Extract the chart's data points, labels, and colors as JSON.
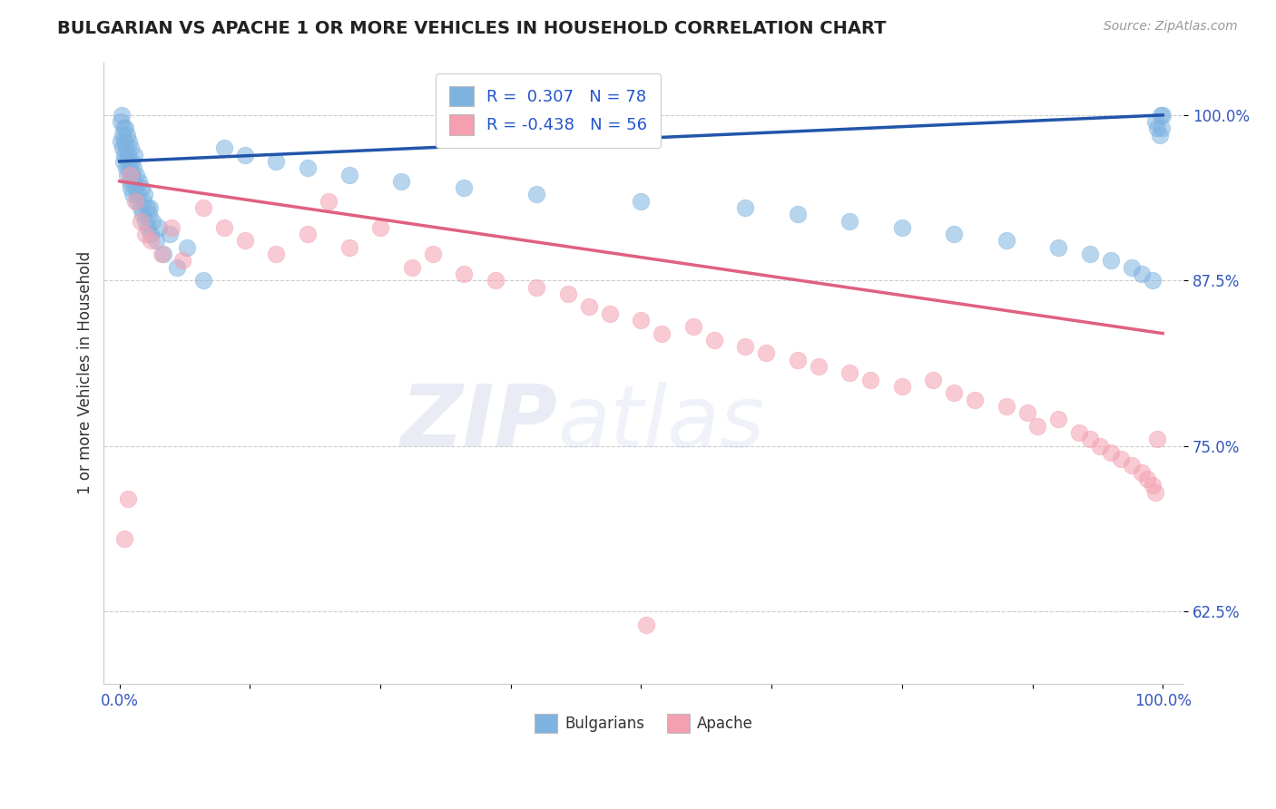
{
  "title": "BULGARIAN VS APACHE 1 OR MORE VEHICLES IN HOUSEHOLD CORRELATION CHART",
  "source_text": "Source: ZipAtlas.com",
  "ylabel": "1 or more Vehicles in Household",
  "xlim": [
    -1.5,
    102
  ],
  "ylim": [
    57.0,
    104.0
  ],
  "yticks": [
    62.5,
    75.0,
    87.5,
    100.0
  ],
  "ytick_labels": [
    "62.5%",
    "75.0%",
    "87.5%",
    "100.0%"
  ],
  "xtick_positions": [
    0,
    12.5,
    25,
    37.5,
    50,
    62.5,
    75,
    87.5,
    100
  ],
  "xtick_labels": [
    "0.0%",
    "",
    "",
    "",
    "",
    "",
    "",
    "",
    "100.0%"
  ],
  "bulgarian_color": "#7eb3e0",
  "apache_color": "#f4a0b0",
  "blue_line_color": "#2255aa",
  "pink_line_color": "#e06080",
  "legend_R_bulgarian": "0.307",
  "legend_N_bulgarian": "78",
  "legend_R_apache": "-0.438",
  "legend_N_apache": "56",
  "watermark_zip_color": "#8899cc",
  "watermark_atlas_color": "#aabbdd",
  "bulgarian_x": [
    0.1,
    0.15,
    0.2,
    0.25,
    0.3,
    0.35,
    0.4,
    0.45,
    0.5,
    0.55,
    0.6,
    0.65,
    0.7,
    0.75,
    0.8,
    0.85,
    0.9,
    0.95,
    1.0,
    1.05,
    1.1,
    1.15,
    1.2,
    1.25,
    1.3,
    1.35,
    1.4,
    1.5,
    1.6,
    1.7,
    1.8,
    1.9,
    2.0,
    2.1,
    2.2,
    2.3,
    2.4,
    2.5,
    2.6,
    2.7,
    2.8,
    2.9,
    3.0,
    3.2,
    3.5,
    3.8,
    4.2,
    4.8,
    5.5,
    6.5,
    8.0,
    10.0,
    12.0,
    15.0,
    18.0,
    22.0,
    27.0,
    33.0,
    40.0,
    50.0,
    60.0,
    65.0,
    70.0,
    75.0,
    80.0,
    85.0,
    90.0,
    93.0,
    95.0,
    97.0,
    98.0,
    99.0,
    99.3,
    99.5,
    99.7,
    99.8,
    99.9,
    100.0
  ],
  "bulgarian_y": [
    99.5,
    98.0,
    100.0,
    97.5,
    98.5,
    99.0,
    96.5,
    97.0,
    98.0,
    99.0,
    96.0,
    97.5,
    98.5,
    95.5,
    96.5,
    97.0,
    98.0,
    95.0,
    96.0,
    97.5,
    94.5,
    95.5,
    96.5,
    94.0,
    95.0,
    96.0,
    97.0,
    94.5,
    95.5,
    93.5,
    94.0,
    95.0,
    93.0,
    94.5,
    92.5,
    93.5,
    94.0,
    92.0,
    93.0,
    91.5,
    92.5,
    93.0,
    91.0,
    92.0,
    90.5,
    91.5,
    89.5,
    91.0,
    88.5,
    90.0,
    87.5,
    97.5,
    97.0,
    96.5,
    96.0,
    95.5,
    95.0,
    94.5,
    94.0,
    93.5,
    93.0,
    92.5,
    92.0,
    91.5,
    91.0,
    90.5,
    90.0,
    89.5,
    89.0,
    88.5,
    88.0,
    87.5,
    99.5,
    99.0,
    98.5,
    100.0,
    99.0,
    100.0
  ],
  "apache_x": [
    0.5,
    0.8,
    1.0,
    1.5,
    2.0,
    2.5,
    3.0,
    4.0,
    5.0,
    6.0,
    8.0,
    10.0,
    12.0,
    15.0,
    18.0,
    20.0,
    22.0,
    25.0,
    28.0,
    30.0,
    33.0,
    36.0,
    40.0,
    43.0,
    45.0,
    47.0,
    50.0,
    52.0,
    55.0,
    57.0,
    60.0,
    62.0,
    65.0,
    67.0,
    70.0,
    72.0,
    75.0,
    78.0,
    80.0,
    82.0,
    85.0,
    87.0,
    88.0,
    90.0,
    92.0,
    93.0,
    94.0,
    95.0,
    96.0,
    97.0,
    98.0,
    98.5,
    99.0,
    99.3,
    99.5,
    50.5
  ],
  "apache_y": [
    68.0,
    71.0,
    95.5,
    93.5,
    92.0,
    91.0,
    90.5,
    89.5,
    91.5,
    89.0,
    93.0,
    91.5,
    90.5,
    89.5,
    91.0,
    93.5,
    90.0,
    91.5,
    88.5,
    89.5,
    88.0,
    87.5,
    87.0,
    86.5,
    85.5,
    85.0,
    84.5,
    83.5,
    84.0,
    83.0,
    82.5,
    82.0,
    81.5,
    81.0,
    80.5,
    80.0,
    79.5,
    80.0,
    79.0,
    78.5,
    78.0,
    77.5,
    76.5,
    77.0,
    76.0,
    75.5,
    75.0,
    74.5,
    74.0,
    73.5,
    73.0,
    72.5,
    72.0,
    71.5,
    75.5,
    61.5
  ],
  "blue_line_x0": 0,
  "blue_line_x1": 100,
  "blue_line_y0": 96.5,
  "blue_line_y1": 100.0,
  "pink_line_x0": 0,
  "pink_line_x1": 100,
  "pink_line_y0": 95.0,
  "pink_line_y1": 83.5
}
